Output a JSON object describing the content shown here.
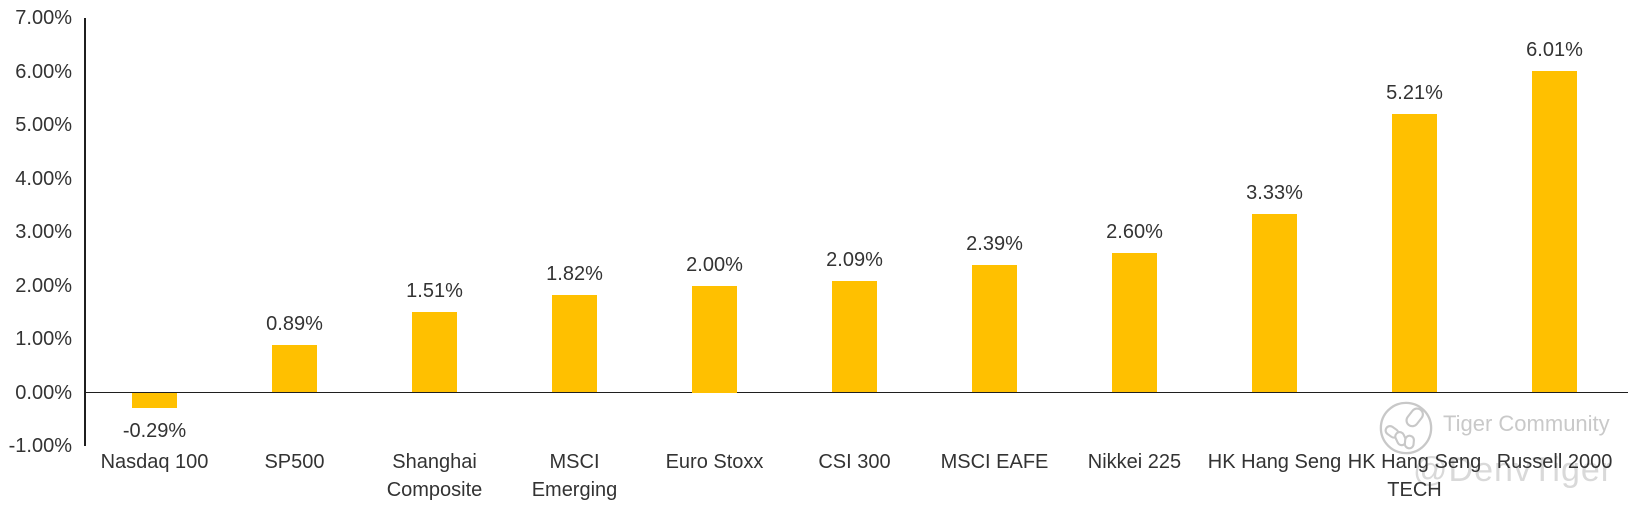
{
  "chart_data": {
    "type": "bar",
    "title": "",
    "xlabel": "",
    "ylabel": "",
    "grid": false,
    "legend": null,
    "bar_color": "#FFC000",
    "axis_color": "#1f1f1f",
    "text_color": "#333333",
    "ylim": [
      -1,
      7
    ],
    "categories": [
      "Nasdaq 100",
      "SP500",
      "Shanghai Composite",
      "MSCI Emerging",
      "Euro Stoxx",
      "CSI 300",
      "MSCI EAFE",
      "Nikkei 225",
      "HK Hang Seng",
      "HK Hang Seng TECH",
      "Russell 2000"
    ],
    "category_label_lines": [
      [
        "Nasdaq 100"
      ],
      [
        "SP500"
      ],
      [
        "Shanghai",
        "Composite"
      ],
      [
        "MSCI",
        "Emerging"
      ],
      [
        "Euro Stoxx"
      ],
      [
        "CSI 300"
      ],
      [
        "MSCI EAFE"
      ],
      [
        "Nikkei 225"
      ],
      [
        "HK Hang Seng"
      ],
      [
        "HK Hang Seng",
        "TECH"
      ],
      [
        "Russell 2000"
      ]
    ],
    "values": [
      -0.29,
      0.89,
      1.51,
      1.82,
      2.0,
      2.09,
      2.39,
      2.6,
      3.33,
      5.21,
      6.01
    ],
    "data_labels": [
      "-0.29%",
      "0.89%",
      "1.51%",
      "1.82%",
      "2.00%",
      "2.09%",
      "2.39%",
      "2.60%",
      "3.33%",
      "5.21%",
      "6.01%"
    ],
    "y_ticks": [
      {
        "value": 7,
        "label": "7.00%"
      },
      {
        "value": 6,
        "label": "6.00%"
      },
      {
        "value": 5,
        "label": "5.00%"
      },
      {
        "value": 4,
        "label": "4.00%"
      },
      {
        "value": 3,
        "label": "3.00%"
      },
      {
        "value": 2,
        "label": "2.00%"
      },
      {
        "value": 1,
        "label": "1.00%"
      },
      {
        "value": 0,
        "label": "0.00%"
      },
      {
        "value": -1,
        "label": "-1.00%"
      }
    ]
  },
  "watermark": {
    "community": "Tiger Community",
    "handle": "@DenvTiger",
    "color": "#c9c9c9"
  }
}
